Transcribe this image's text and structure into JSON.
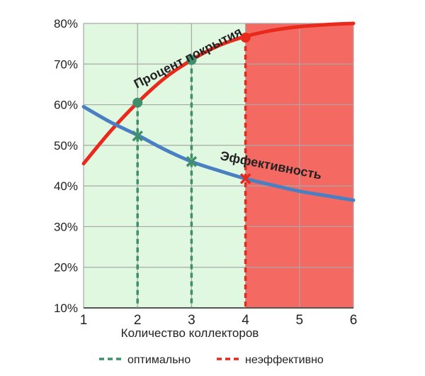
{
  "chart_data": {
    "type": "line",
    "xlabel": "Количество коллекторов",
    "ylabel": "",
    "xlim": [
      1,
      6
    ],
    "ylim": [
      10,
      80
    ],
    "x_ticks": [
      "1",
      "2",
      "3",
      "4",
      "5",
      "6"
    ],
    "y_ticks": [
      "10%",
      "20%",
      "30%",
      "40%",
      "50%",
      "60%",
      "70%",
      "80%"
    ],
    "grid": true,
    "regions": [
      {
        "name": "оптимально",
        "x_range": [
          1,
          4
        ],
        "color": "#e0f7e0"
      },
      {
        "name": "неэффективно",
        "x_range": [
          4,
          6
        ],
        "color": "#f46a63"
      }
    ],
    "series": [
      {
        "name": "Процент покрытия",
        "color": "#e8291c",
        "x": [
          1,
          1.5,
          2,
          2.5,
          3,
          3.5,
          4,
          4.5,
          5,
          5.5,
          6
        ],
        "y": [
          45.5,
          53.5,
          60.5,
          66.5,
          71,
          74.5,
          76.8,
          78.3,
          79.2,
          79.7,
          80
        ],
        "markers": [
          {
            "x": 2,
            "y": 60.5,
            "color": "#3f8f6a",
            "shape": "circle"
          },
          {
            "x": 3,
            "y": 71,
            "color": "#3f8f6a",
            "shape": "circle"
          },
          {
            "x": 4,
            "y": 76.5,
            "color": "#e8291c",
            "shape": "circle"
          }
        ]
      },
      {
        "name": "Эффективность",
        "color": "#4a80c2",
        "x": [
          1,
          1.5,
          2,
          2.5,
          3,
          3.5,
          4,
          4.5,
          5,
          5.5,
          6
        ],
        "y": [
          59.5,
          55.7,
          52.5,
          49,
          46,
          43.8,
          41.8,
          40.2,
          38.7,
          37.6,
          36.5
        ],
        "markers": [
          {
            "x": 2,
            "y": 52.3,
            "color": "#3f8f6a",
            "shape": "x"
          },
          {
            "x": 3,
            "y": 46,
            "color": "#3f8f6a",
            "shape": "x"
          },
          {
            "x": 4,
            "y": 41.8,
            "color": "#e8291c",
            "shape": "x"
          }
        ]
      }
    ],
    "guides": [
      {
        "x": 2,
        "y_top": 60.5,
        "kind": "оптимально",
        "color": "#3f8f6a"
      },
      {
        "x": 3,
        "y_top": 71,
        "kind": "оптимально",
        "color": "#3f8f6a"
      },
      {
        "x": 4,
        "y_top": 76.5,
        "kind": "неэффективно",
        "color": "#e8291c"
      }
    ],
    "legend": {
      "position": "bottom",
      "items": [
        {
          "label": "оптимально",
          "color": "#3f8f6a"
        },
        {
          "label": "неэффективно",
          "color": "#e8291c"
        }
      ]
    },
    "colors": {
      "grid": "#a8a8a8",
      "axis": "#555555",
      "text": "#222222"
    }
  }
}
